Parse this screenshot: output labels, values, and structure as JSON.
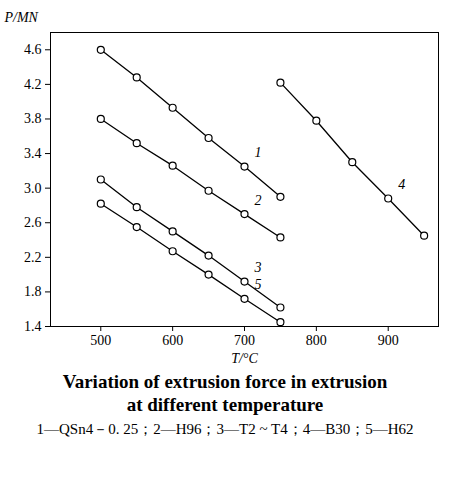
{
  "chart_data": {
    "type": "line",
    "title": "Variation of extrusion force in extrusion at different temperature",
    "caption": "1—QSn4－0. 25；2—H96；3—T2 ~ T4；4—B30；5—H62",
    "x_label": "T/°C",
    "y_label": "P/MN",
    "xlim": [
      430,
      970
    ],
    "xticks": [
      500,
      600,
      700,
      800,
      900
    ],
    "ylim": [
      1.4,
      4.8
    ],
    "yticks": [
      1.4,
      1.8,
      2.2,
      2.6,
      {
        "value": 3,
        "label": "3.0"
      },
      3.4,
      3.8,
      4.2,
      4.6
    ],
    "grid": false,
    "marker": "circle",
    "series": [
      {
        "name": "1",
        "color": "#000000",
        "x": [
          500,
          550,
          600,
          650,
          700,
          750
        ],
        "values": [
          4.6,
          4.28,
          3.93,
          3.58,
          3.25,
          2.9
        ]
      },
      {
        "name": "2",
        "color": "#000000",
        "x": [
          500,
          550,
          600,
          650,
          700,
          750
        ],
        "values": [
          3.8,
          3.52,
          3.26,
          2.97,
          2.7,
          2.43
        ]
      },
      {
        "name": "3",
        "color": "#000000",
        "x": [
          500,
          550,
          600,
          650,
          700,
          750
        ],
        "values": [
          3.1,
          2.78,
          2.5,
          2.22,
          1.92,
          1.62
        ]
      },
      {
        "name": "4",
        "color": "#000000",
        "x": [
          750,
          800,
          850,
          900,
          950
        ],
        "values": [
          4.22,
          3.78,
          3.3,
          2.88,
          2.45
        ]
      },
      {
        "name": "5",
        "color": "#000000",
        "x": [
          500,
          550,
          600,
          650,
          700,
          750
        ],
        "values": [
          2.82,
          2.55,
          2.27,
          2.0,
          1.72,
          1.45
        ]
      }
    ]
  }
}
